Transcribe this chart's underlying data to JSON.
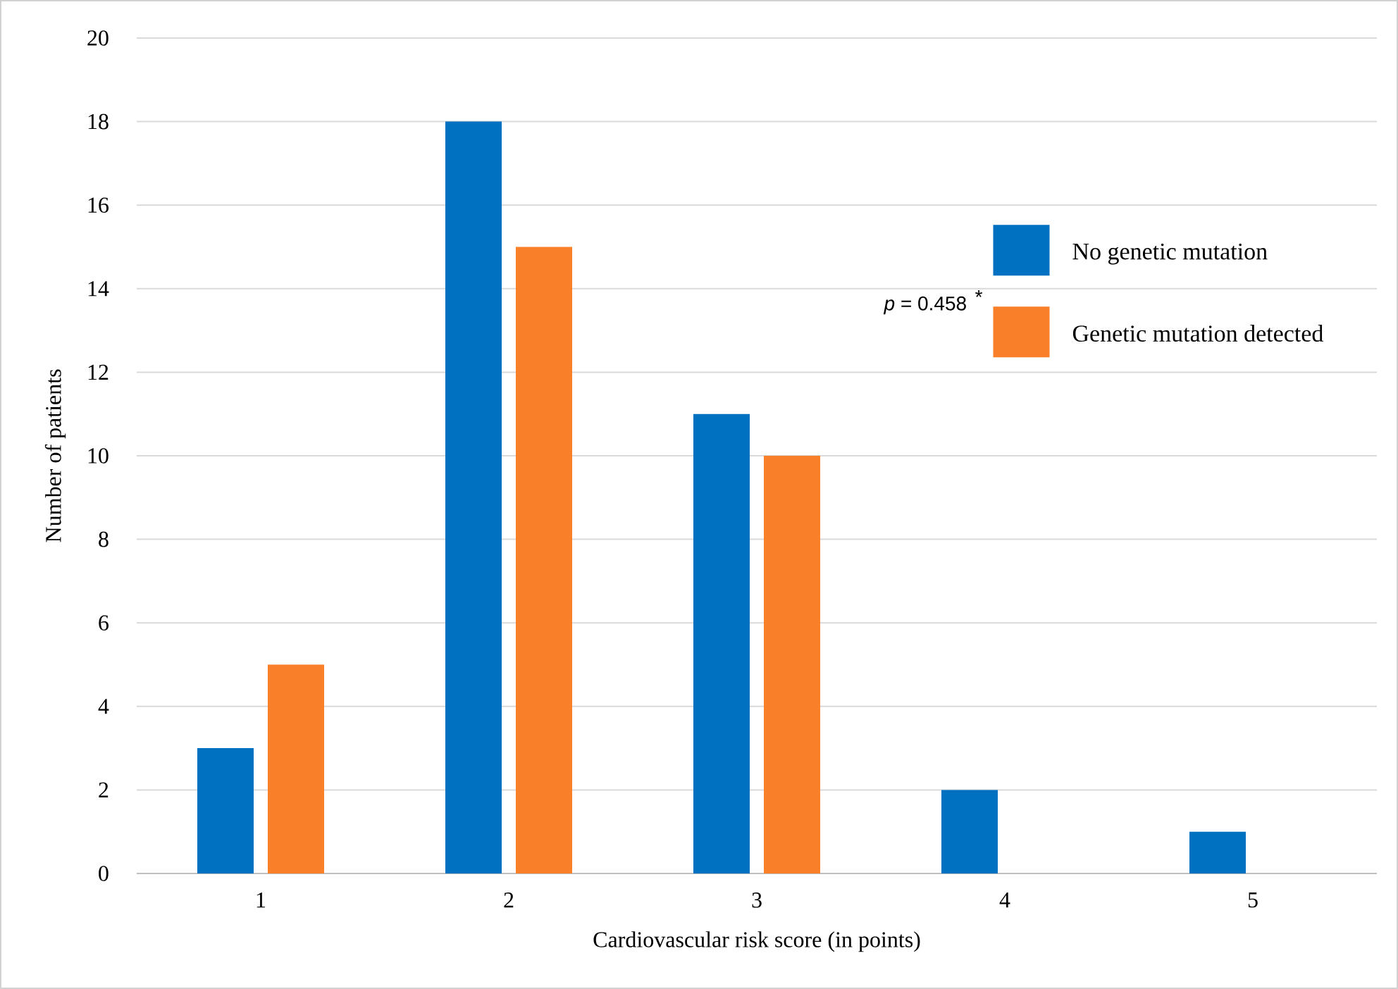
{
  "chart_data": {
    "type": "bar",
    "xlabel": "Cardiovascular risk score (in points)",
    "ylabel": "Number of patients",
    "categories": [
      "1",
      "2",
      "3",
      "4",
      "5"
    ],
    "series": [
      {
        "name": "No genetic mutation",
        "color": "#0070c0",
        "values": [
          3,
          18,
          11,
          2,
          1
        ]
      },
      {
        "name": "Genetic mutation detected",
        "color": "#f97f28",
        "values": [
          5,
          15,
          10,
          null,
          null
        ]
      }
    ],
    "ylim": [
      0,
      20
    ],
    "yticks": [
      0,
      2,
      4,
      6,
      8,
      10,
      12,
      14,
      16,
      18,
      20
    ],
    "grid": "y",
    "legend": "top right",
    "annotations": [
      "*p* = 0.458",
      "*"
    ]
  }
}
